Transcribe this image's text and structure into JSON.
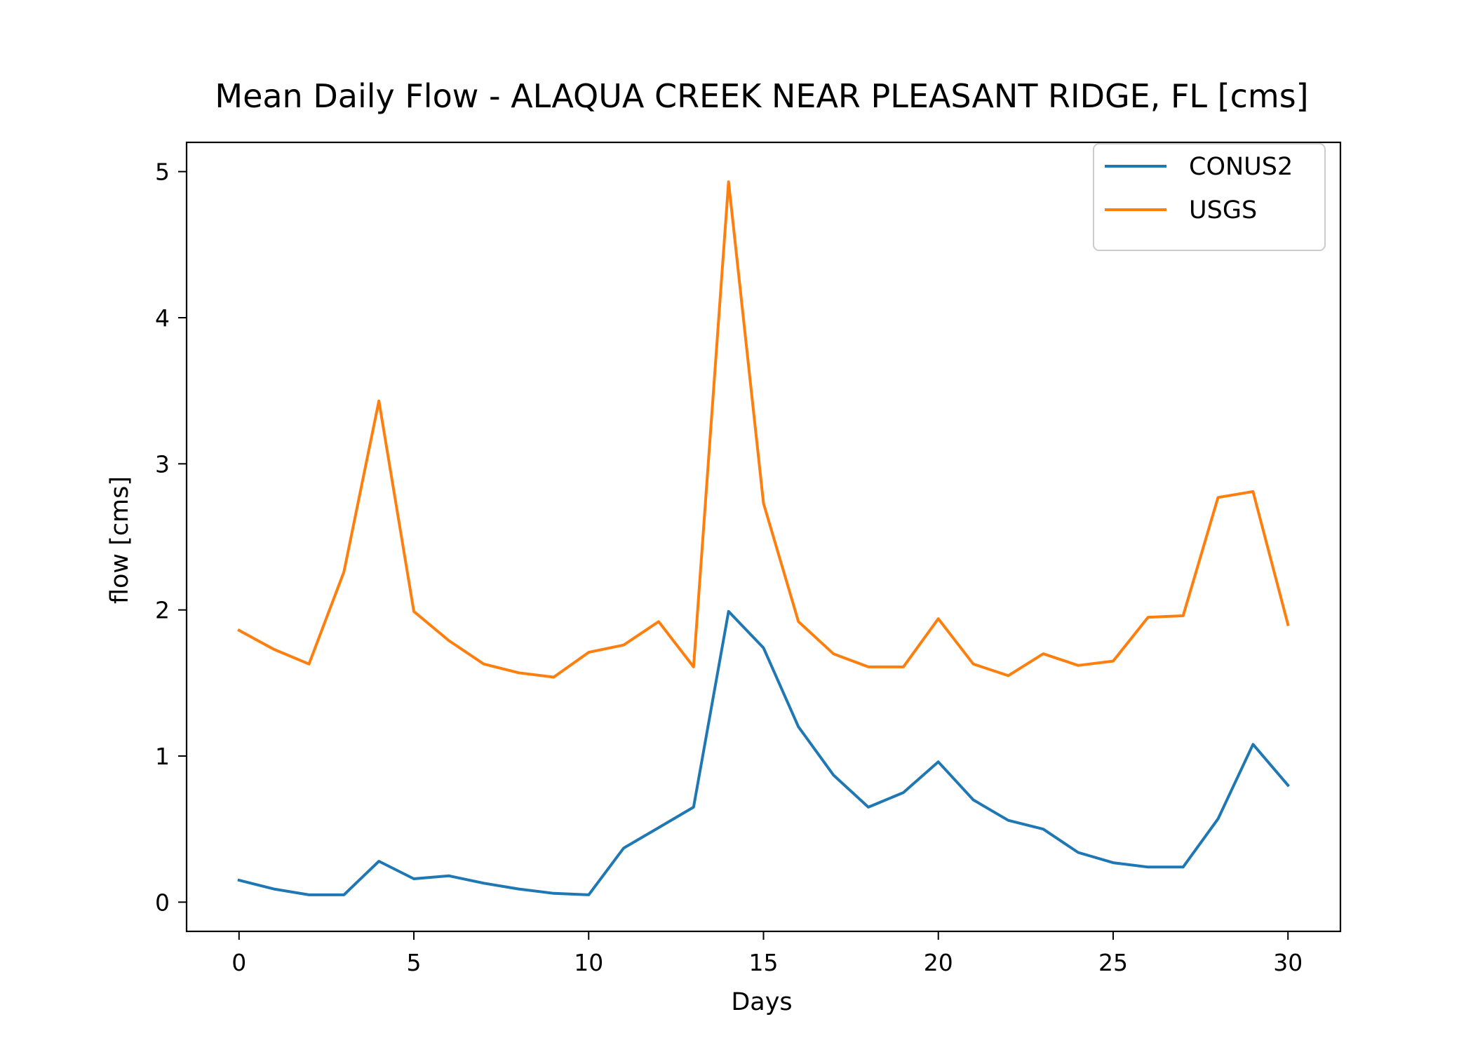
{
  "chart_data": {
    "type": "line",
    "title": "Mean Daily Flow - ALAQUA CREEK NEAR PLEASANT RIDGE, FL [cms]",
    "xlabel": "Days",
    "ylabel": "flow [cms]",
    "xlim": [
      -1.5,
      31.5
    ],
    "ylim": [
      -0.2,
      5.2
    ],
    "xticks": [
      0,
      5,
      10,
      15,
      20,
      25,
      30
    ],
    "yticks": [
      0,
      1,
      2,
      3,
      4,
      5
    ],
    "grid": false,
    "legend_position": "top-right",
    "x": [
      0,
      1,
      2,
      3,
      4,
      5,
      6,
      7,
      8,
      9,
      10,
      11,
      12,
      13,
      14,
      15,
      16,
      17,
      18,
      19,
      20,
      21,
      22,
      23,
      24,
      25,
      26,
      27,
      28,
      29,
      30
    ],
    "series": [
      {
        "name": "CONUS2",
        "color": "#1f77b4",
        "values": [
          0.15,
          0.09,
          0.05,
          0.05,
          0.28,
          0.16,
          0.18,
          0.13,
          0.09,
          0.06,
          0.05,
          0.37,
          0.51,
          0.65,
          1.99,
          1.74,
          1.2,
          0.87,
          0.65,
          0.75,
          0.96,
          0.7,
          0.56,
          0.5,
          0.34,
          0.27,
          0.24,
          0.24,
          0.57,
          1.08,
          0.8
        ]
      },
      {
        "name": "USGS",
        "color": "#ff7f0e",
        "values": [
          1.86,
          1.73,
          1.63,
          2.26,
          3.43,
          1.99,
          1.79,
          1.63,
          1.57,
          1.54,
          1.71,
          1.76,
          1.92,
          1.61,
          4.93,
          2.73,
          1.92,
          1.7,
          1.61,
          1.61,
          1.94,
          1.63,
          1.55,
          1.7,
          1.62,
          1.65,
          1.95,
          1.96,
          2.77,
          2.81,
          1.9
        ]
      }
    ]
  }
}
